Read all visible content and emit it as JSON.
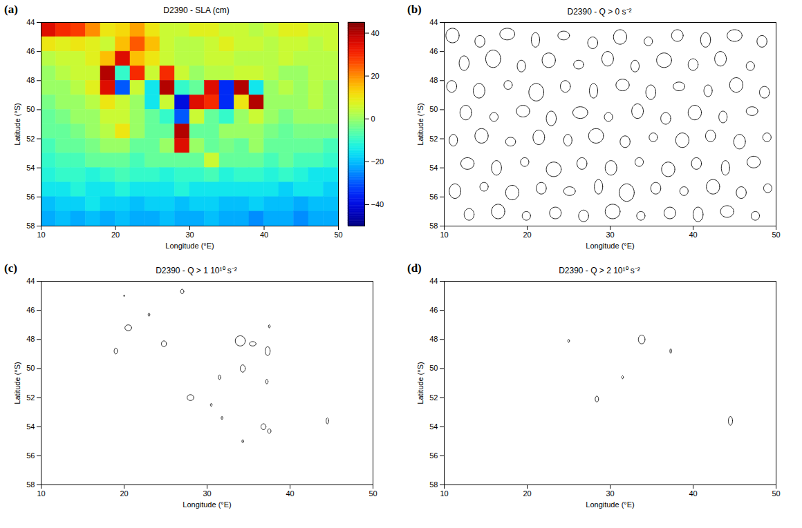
{
  "chart_data": [
    {
      "type": "heatmap",
      "panel": "(a)",
      "title": "D2390 - SLA (cm)",
      "x_label": "Longitude (°E)",
      "y_label": "Latitude (°S)",
      "xlim": [
        10,
        50
      ],
      "ylim": [
        44,
        58
      ],
      "xticks": [
        10,
        20,
        30,
        40,
        50
      ],
      "yticks": [
        44,
        46,
        48,
        50,
        52,
        54,
        56,
        58
      ],
      "color": "jet",
      "x": [
        11,
        13,
        15,
        17,
        19,
        21,
        23,
        25,
        27,
        29,
        31,
        33,
        35,
        37,
        39,
        41,
        43,
        45,
        47,
        49
      ],
      "y": [
        44.5,
        45.5,
        46.5,
        47.5,
        48.5,
        49.5,
        50.5,
        51.5,
        52.5,
        53.5,
        54.5,
        55.5,
        56.5,
        57.5
      ],
      "cells": [
        [
          35,
          30,
          28,
          20,
          10,
          12,
          18,
          10,
          5,
          5,
          8,
          8,
          5,
          5,
          3,
          5,
          8,
          8,
          5,
          5
        ],
        [
          10,
          8,
          10,
          8,
          5,
          15,
          25,
          15,
          5,
          3,
          3,
          5,
          8,
          5,
          5,
          3,
          5,
          5,
          3,
          5
        ],
        [
          3,
          5,
          5,
          8,
          15,
          35,
          15,
          10,
          5,
          3,
          3,
          5,
          5,
          3,
          3,
          3,
          5,
          3,
          3,
          3
        ],
        [
          0,
          3,
          5,
          5,
          40,
          -10,
          30,
          5,
          30,
          5,
          0,
          3,
          3,
          5,
          5,
          3,
          0,
          0,
          3,
          3
        ],
        [
          0,
          0,
          3,
          8,
          35,
          -30,
          5,
          -15,
          40,
          -10,
          -5,
          35,
          -35,
          40,
          -15,
          0,
          3,
          0,
          3,
          0
        ],
        [
          -3,
          0,
          0,
          3,
          10,
          5,
          0,
          -15,
          5,
          -40,
          35,
          30,
          -35,
          10,
          40,
          0,
          0,
          0,
          3,
          0
        ],
        [
          -5,
          -3,
          0,
          0,
          5,
          5,
          0,
          -5,
          -10,
          -30,
          5,
          -5,
          -10,
          0,
          5,
          0,
          -3,
          0,
          0,
          0
        ],
        [
          -5,
          -5,
          -3,
          0,
          3,
          10,
          0,
          -5,
          -5,
          40,
          -5,
          -5,
          0,
          0,
          0,
          -3,
          -5,
          -3,
          -3,
          -3
        ],
        [
          -8,
          -5,
          -5,
          -3,
          0,
          0,
          -5,
          -5,
          0,
          35,
          0,
          -5,
          -3,
          -5,
          0,
          -5,
          -5,
          -5,
          -5,
          -8
        ],
        [
          -10,
          -8,
          -8,
          -5,
          -5,
          -5,
          -8,
          -5,
          -5,
          -5,
          -5,
          5,
          -5,
          -5,
          -5,
          -8,
          -5,
          -8,
          -8,
          -10
        ],
        [
          -12,
          -10,
          -10,
          -12,
          -10,
          -8,
          -10,
          -10,
          -12,
          -10,
          -10,
          -8,
          -12,
          -10,
          -10,
          -12,
          -10,
          -12,
          -15,
          -15
        ],
        [
          -15,
          -15,
          -12,
          -15,
          -15,
          -12,
          -15,
          -15,
          -15,
          -12,
          -15,
          -15,
          -15,
          -15,
          -15,
          -15,
          -18,
          -15,
          -15,
          -18
        ],
        [
          -20,
          -18,
          -18,
          -15,
          -18,
          -18,
          -20,
          -18,
          -18,
          -20,
          -18,
          -18,
          -20,
          -20,
          -18,
          -20,
          -20,
          -22,
          -20,
          -20
        ],
        [
          -22,
          -20,
          -22,
          -20,
          -22,
          -20,
          -22,
          -22,
          -20,
          -22,
          -22,
          -20,
          -22,
          -22,
          -25,
          -22,
          -22,
          -25,
          -22,
          -22
        ]
      ],
      "colorbar": {
        "range": [
          -50,
          45
        ],
        "ticks": [
          -40,
          -20,
          0,
          20,
          40
        ]
      }
    },
    {
      "type": "contour",
      "panel": "(b)",
      "title": "D2390 - Q > 0 s⁻²",
      "x_label": "Longitude (°E)",
      "y_label": "Latitude (°S)",
      "xlim": [
        10,
        50
      ],
      "ylim": [
        44,
        58
      ],
      "xticks": [
        10,
        20,
        30,
        40,
        50
      ],
      "yticks": [
        44,
        46,
        48,
        50,
        52,
        54,
        56,
        58
      ],
      "color": "#000000",
      "contours": [
        [
          11.0,
          44.9,
          0.8,
          0.5
        ],
        [
          14.3,
          45.3,
          0.6,
          0.4
        ],
        [
          17.6,
          44.8,
          0.9,
          0.4
        ],
        [
          21.0,
          45.2,
          0.5,
          0.5
        ],
        [
          24.4,
          44.9,
          0.7,
          0.3
        ],
        [
          27.9,
          45.4,
          0.6,
          0.4
        ],
        [
          31.2,
          45.0,
          0.8,
          0.5
        ],
        [
          34.6,
          45.3,
          0.5,
          0.3
        ],
        [
          38.1,
          44.9,
          0.7,
          0.4
        ],
        [
          41.5,
          45.2,
          0.6,
          0.5
        ],
        [
          45.0,
          44.9,
          0.9,
          0.4
        ],
        [
          48.3,
          45.3,
          0.6,
          0.4
        ],
        [
          12.4,
          46.8,
          0.6,
          0.5
        ],
        [
          15.9,
          46.5,
          0.9,
          0.6
        ],
        [
          19.3,
          47.0,
          0.5,
          0.4
        ],
        [
          22.6,
          46.6,
          0.8,
          0.5
        ],
        [
          26.2,
          46.9,
          0.6,
          0.3
        ],
        [
          29.7,
          46.5,
          0.7,
          0.5
        ],
        [
          33.0,
          47.0,
          0.5,
          0.4
        ],
        [
          36.5,
          46.6,
          0.9,
          0.5
        ],
        [
          40.0,
          46.9,
          0.6,
          0.4
        ],
        [
          43.3,
          46.5,
          0.7,
          0.5
        ],
        [
          46.9,
          47.0,
          0.5,
          0.3
        ],
        [
          10.9,
          48.4,
          0.6,
          0.4
        ],
        [
          14.2,
          48.7,
          0.7,
          0.5
        ],
        [
          17.7,
          48.3,
          0.5,
          0.3
        ],
        [
          21.1,
          48.8,
          0.9,
          0.6
        ],
        [
          24.6,
          48.4,
          0.6,
          0.4
        ],
        [
          28.0,
          48.7,
          0.5,
          0.5
        ],
        [
          31.5,
          48.3,
          0.8,
          0.4
        ],
        [
          34.9,
          48.8,
          0.6,
          0.5
        ],
        [
          38.3,
          48.4,
          0.7,
          0.3
        ],
        [
          41.8,
          48.7,
          0.5,
          0.4
        ],
        [
          45.2,
          48.3,
          0.8,
          0.5
        ],
        [
          48.6,
          48.8,
          0.6,
          0.4
        ],
        [
          12.6,
          50.2,
          0.7,
          0.5
        ],
        [
          16.0,
          50.5,
          0.5,
          0.3
        ],
        [
          19.5,
          50.1,
          0.8,
          0.4
        ],
        [
          22.9,
          50.6,
          0.6,
          0.5
        ],
        [
          26.4,
          50.2,
          0.9,
          0.4
        ],
        [
          29.8,
          50.5,
          0.5,
          0.3
        ],
        [
          33.3,
          50.1,
          0.7,
          0.5
        ],
        [
          36.7,
          50.6,
          0.6,
          0.4
        ],
        [
          40.2,
          50.2,
          0.8,
          0.5
        ],
        [
          43.6,
          50.5,
          0.5,
          0.4
        ],
        [
          47.1,
          50.1,
          0.7,
          0.3
        ],
        [
          11.1,
          52.1,
          0.5,
          0.4
        ],
        [
          14.5,
          51.8,
          0.8,
          0.5
        ],
        [
          18.0,
          52.2,
          0.6,
          0.3
        ],
        [
          21.4,
          51.9,
          0.7,
          0.5
        ],
        [
          24.9,
          52.1,
          0.5,
          0.4
        ],
        [
          28.3,
          51.8,
          0.9,
          0.5
        ],
        [
          31.8,
          52.2,
          0.6,
          0.4
        ],
        [
          35.2,
          51.9,
          0.5,
          0.3
        ],
        [
          38.7,
          52.1,
          0.8,
          0.5
        ],
        [
          42.1,
          51.8,
          0.6,
          0.4
        ],
        [
          45.6,
          52.2,
          0.7,
          0.5
        ],
        [
          48.9,
          51.9,
          0.5,
          0.3
        ],
        [
          12.8,
          53.7,
          0.8,
          0.4
        ],
        [
          16.3,
          54.0,
          0.6,
          0.5
        ],
        [
          19.7,
          53.6,
          0.5,
          0.3
        ],
        [
          23.2,
          54.1,
          0.9,
          0.5
        ],
        [
          26.6,
          53.7,
          0.6,
          0.4
        ],
        [
          30.1,
          54.0,
          0.7,
          0.5
        ],
        [
          33.5,
          53.6,
          0.5,
          0.3
        ],
        [
          37.0,
          54.1,
          0.8,
          0.5
        ],
        [
          40.4,
          53.7,
          0.6,
          0.4
        ],
        [
          43.9,
          54.0,
          0.5,
          0.5
        ],
        [
          47.3,
          53.6,
          0.8,
          0.4
        ],
        [
          11.3,
          55.6,
          0.7,
          0.5
        ],
        [
          14.8,
          55.3,
          0.5,
          0.3
        ],
        [
          18.2,
          55.7,
          0.8,
          0.5
        ],
        [
          21.7,
          55.4,
          0.6,
          0.4
        ],
        [
          25.1,
          55.6,
          0.7,
          0.3
        ],
        [
          28.6,
          55.3,
          0.5,
          0.5
        ],
        [
          32.0,
          55.7,
          0.9,
          0.6
        ],
        [
          35.5,
          55.4,
          0.6,
          0.4
        ],
        [
          38.9,
          55.6,
          0.5,
          0.3
        ],
        [
          42.4,
          55.3,
          0.8,
          0.5
        ],
        [
          45.8,
          55.7,
          0.6,
          0.4
        ],
        [
          49.0,
          55.4,
          0.5,
          0.3
        ],
        [
          13.0,
          57.2,
          0.6,
          0.4
        ],
        [
          16.5,
          57.0,
          0.8,
          0.5
        ],
        [
          19.9,
          57.3,
          0.5,
          0.3
        ],
        [
          23.4,
          57.1,
          0.7,
          0.4
        ],
        [
          26.8,
          57.3,
          0.6,
          0.4
        ],
        [
          30.3,
          57.0,
          0.9,
          0.5
        ],
        [
          33.7,
          57.3,
          0.5,
          0.3
        ],
        [
          37.2,
          57.1,
          0.7,
          0.4
        ],
        [
          40.6,
          57.2,
          0.6,
          0.5
        ],
        [
          44.1,
          57.0,
          0.8,
          0.4
        ],
        [
          47.5,
          57.3,
          0.5,
          0.3
        ]
      ]
    },
    {
      "type": "contour",
      "panel": "(c)",
      "title": "D2390 - Q > 1 10¹⁰ s⁻²",
      "x_label": "Longitude (°E)",
      "y_label": "Latitude (°S)",
      "xlim": [
        10,
        50
      ],
      "ylim": [
        44,
        58
      ],
      "xticks": [
        10,
        20,
        30,
        40,
        50
      ],
      "yticks": [
        44,
        46,
        48,
        50,
        52,
        54,
        56,
        58
      ],
      "color": "#000000",
      "contours": [
        [
          19.0,
          48.8,
          0.2,
          0.2
        ],
        [
          20.5,
          47.2,
          0.4,
          0.2
        ],
        [
          23.0,
          46.3,
          0.1,
          0.1
        ],
        [
          24.8,
          48.3,
          0.3,
          0.2
        ],
        [
          27.0,
          44.7,
          0.2,
          0.15
        ],
        [
          20.0,
          45.0,
          0.05,
          0.05
        ],
        [
          28.0,
          52.0,
          0.4,
          0.2
        ],
        [
          30.5,
          52.5,
          0.1,
          0.1
        ],
        [
          31.5,
          50.6,
          0.15,
          0.15
        ],
        [
          31.8,
          53.4,
          0.1,
          0.1
        ],
        [
          34.0,
          48.1,
          0.6,
          0.35
        ],
        [
          35.5,
          48.3,
          0.4,
          0.15
        ],
        [
          34.3,
          50.0,
          0.3,
          0.25
        ],
        [
          34.3,
          55.0,
          0.1,
          0.1
        ],
        [
          37.3,
          48.8,
          0.3,
          0.3
        ],
        [
          37.2,
          50.9,
          0.15,
          0.15
        ],
        [
          37.5,
          47.1,
          0.1,
          0.1
        ],
        [
          36.8,
          54.0,
          0.3,
          0.2
        ],
        [
          37.5,
          54.3,
          0.2,
          0.15
        ],
        [
          44.5,
          53.6,
          0.15,
          0.2
        ]
      ]
    },
    {
      "type": "contour",
      "panel": "(d)",
      "title": "D2390 - Q > 2 10¹⁰ s⁻²",
      "x_label": "Longitude (°E)",
      "y_label": "Latitude (°S)",
      "xlim": [
        10,
        50
      ],
      "ylim": [
        44,
        58
      ],
      "xticks": [
        10,
        20,
        30,
        40,
        50
      ],
      "yticks": [
        44,
        46,
        48,
        50,
        52,
        54,
        56,
        58
      ],
      "color": "#000000",
      "contours": [
        [
          25.0,
          48.1,
          0.1,
          0.1
        ],
        [
          33.8,
          48.0,
          0.4,
          0.3
        ],
        [
          37.3,
          48.8,
          0.1,
          0.15
        ],
        [
          31.5,
          50.6,
          0.1,
          0.1
        ],
        [
          28.4,
          52.1,
          0.2,
          0.2
        ],
        [
          44.5,
          53.6,
          0.25,
          0.3
        ]
      ]
    }
  ]
}
